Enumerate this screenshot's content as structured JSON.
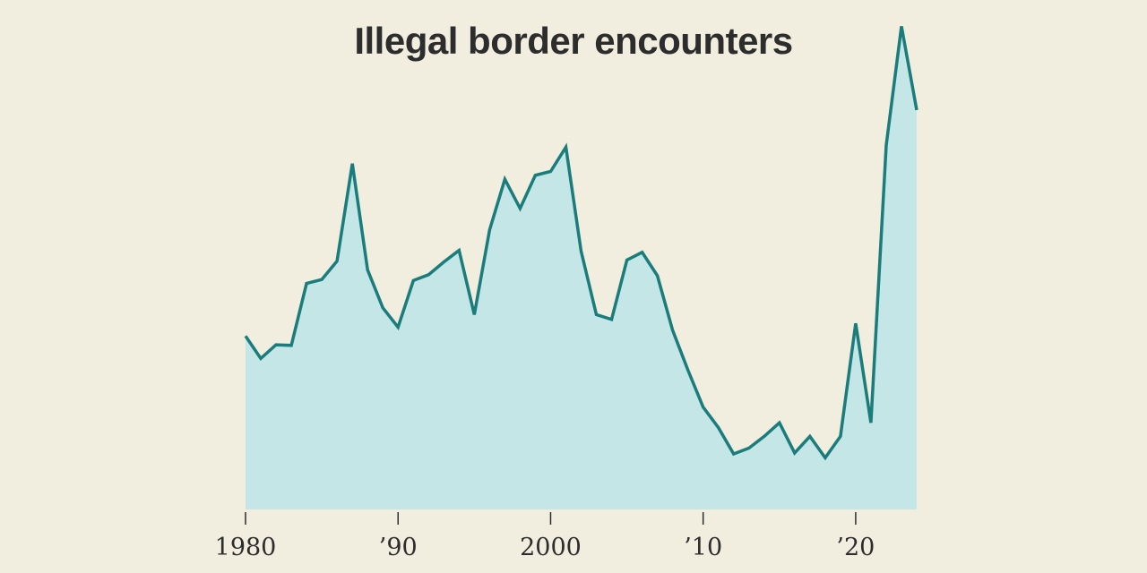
{
  "colors": {
    "background": "#f1eedf",
    "line": "#1b7c7c",
    "area": "#c5e6e7",
    "text": "#2d2d2d",
    "axis": "#2d2d2d"
  },
  "chart_data": {
    "type": "area",
    "title": "Illegal border encounters",
    "xlabel": "",
    "ylabel": "",
    "xlim": [
      1980,
      2024
    ],
    "ylim": [
      0,
      2500000
    ],
    "grid": false,
    "x_ticks": [
      {
        "value": 1980,
        "label": "1980"
      },
      {
        "value": 1990,
        "label": "’90"
      },
      {
        "value": 2000,
        "label": "2000"
      },
      {
        "value": 2010,
        "label": "’10"
      },
      {
        "value": 2020,
        "label": "’20"
      }
    ],
    "series": [
      {
        "x": [
          1980,
          1981,
          1982,
          1983,
          1984,
          1985,
          1986,
          1987,
          1988,
          1989,
          1990,
          1991,
          1992,
          1993,
          1994,
          1995,
          1996,
          1997,
          1998,
          1999,
          2000,
          2001,
          2002,
          2003,
          2004,
          2005,
          2006,
          2007,
          2008,
          2009,
          2010,
          2011,
          2012,
          2013,
          2014,
          2015,
          2016,
          2017,
          2018,
          2019,
          2020,
          2021,
          2022,
          2023,
          2024
        ],
        "values": [
          890000,
          775000,
          845000,
          842000,
          1160000,
          1180000,
          1275000,
          1775000,
          1230000,
          1035000,
          935000,
          1175000,
          1205000,
          1270000,
          1330000,
          1000000,
          1435000,
          1695000,
          1545000,
          1715000,
          1735000,
          1860000,
          1325000,
          1000000,
          975000,
          1280000,
          1320000,
          1200000,
          920000,
          715000,
          525000,
          420000,
          285000,
          315000,
          375000,
          445000,
          290000,
          375000,
          265000,
          375000,
          955000,
          445000,
          1870000,
          2480000,
          2050000
        ]
      }
    ]
  }
}
